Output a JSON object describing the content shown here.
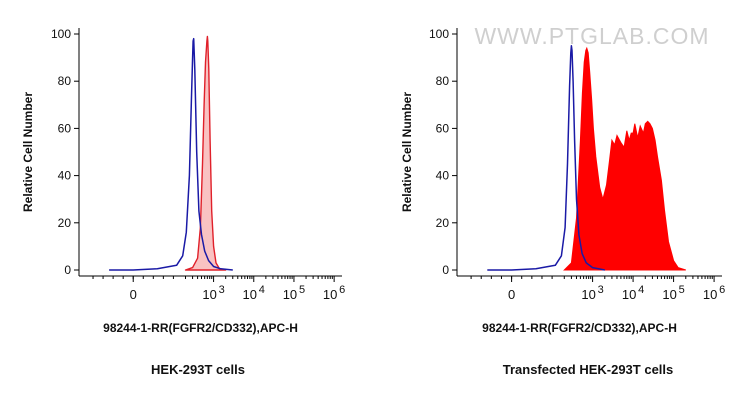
{
  "watermark": "WWW.PTGLAB.COM",
  "colors": {
    "control": "#1a1aa6",
    "sample_fill_left": "#f9c2c2",
    "sample_line_left": "#e0202a",
    "sample_fill_right": "#ff0000",
    "axis": "#000000",
    "watermark": "#cfcfcf"
  },
  "chart_data": [
    {
      "type": "area",
      "caption": "HEK-293T cells",
      "xlabel": "98244-1-RR(FGFR2/CD332),APC-H",
      "ylabel": "Relative Cell Number",
      "x_scale": "biexponential",
      "ylim": [
        0,
        100
      ],
      "y_ticks": [
        0,
        20,
        40,
        60,
        80,
        100
      ],
      "x_ticks": [
        {
          "value": 0,
          "base": "0",
          "exp": ""
        },
        {
          "value": 1000,
          "base": "10",
          "exp": "3"
        },
        {
          "value": 10000,
          "base": "10",
          "exp": "4"
        },
        {
          "value": 100000,
          "base": "10",
          "exp": "5"
        },
        {
          "value": 1000000,
          "base": "10",
          "exp": "6"
        }
      ],
      "series": [
        {
          "role": "control",
          "style": "line",
          "x": [
            -60,
            0,
            60,
            120,
            170,
            210,
            250,
            280,
            300,
            310,
            320,
            340,
            380,
            430,
            500,
            600,
            750,
            1000,
            1500,
            3000
          ],
          "y": [
            0,
            0,
            0.5,
            2,
            6,
            16,
            40,
            72,
            90,
            97,
            98,
            85,
            50,
            25,
            15,
            8,
            4,
            1.5,
            0.5,
            0
          ]
        },
        {
          "role": "sample",
          "style": "filled",
          "x": [
            200,
            300,
            400,
            470,
            530,
            580,
            630,
            680,
            700,
            720,
            760,
            820,
            900,
            1000,
            1150,
            1400,
            2000
          ],
          "y": [
            0,
            1,
            5,
            18,
            45,
            70,
            88,
            97,
            99,
            97,
            85,
            55,
            25,
            10,
            3,
            0.5,
            0
          ]
        }
      ]
    },
    {
      "type": "area",
      "caption": "Transfected HEK-293T cells",
      "xlabel": "98244-1-RR(FGFR2/CD332),APC-H",
      "ylabel": "Relative Cell Number",
      "x_scale": "biexponential",
      "ylim": [
        0,
        100
      ],
      "y_ticks": [
        0,
        20,
        40,
        60,
        80,
        100
      ],
      "x_ticks": [
        {
          "value": 0,
          "base": "0",
          "exp": ""
        },
        {
          "value": 1000,
          "base": "10",
          "exp": "3"
        },
        {
          "value": 10000,
          "base": "10",
          "exp": "4"
        },
        {
          "value": 100000,
          "base": "10",
          "exp": "5"
        },
        {
          "value": 1000000,
          "base": "10",
          "exp": "6"
        }
      ],
      "series": [
        {
          "role": "control",
          "style": "line",
          "x": [
            -60,
            0,
            60,
            120,
            170,
            210,
            240,
            270,
            290,
            300,
            310,
            330,
            360,
            400,
            460,
            550,
            700,
            1000,
            2000
          ],
          "y": [
            0,
            0,
            0.5,
            2,
            6,
            18,
            45,
            78,
            92,
            95,
            93,
            80,
            55,
            30,
            15,
            7,
            3,
            1,
            0
          ]
        },
        {
          "role": "sample",
          "style": "filled",
          "x": [
            200,
            300,
            400,
            500,
            560,
            620,
            680,
            720,
            780,
            850,
            950,
            1050,
            1200,
            1500,
            1800,
            2200,
            2600,
            3000,
            3500,
            4000,
            5000,
            6000,
            7000,
            8000,
            9000,
            10000,
            11000,
            13000,
            15000,
            18000,
            20000,
            23000,
            26000,
            30000,
            35000,
            40000,
            50000,
            60000,
            75000,
            100000,
            130000,
            200000
          ],
          "y": [
            0,
            3,
            22,
            55,
            75,
            88,
            93,
            94,
            92,
            84,
            72,
            60,
            48,
            35,
            30,
            36,
            46,
            55,
            53,
            57,
            54,
            52,
            59,
            55,
            58,
            58,
            62,
            56,
            61,
            58,
            62,
            63,
            62,
            60,
            55,
            48,
            38,
            25,
            12,
            4,
            1,
            0
          ]
        }
      ]
    }
  ]
}
